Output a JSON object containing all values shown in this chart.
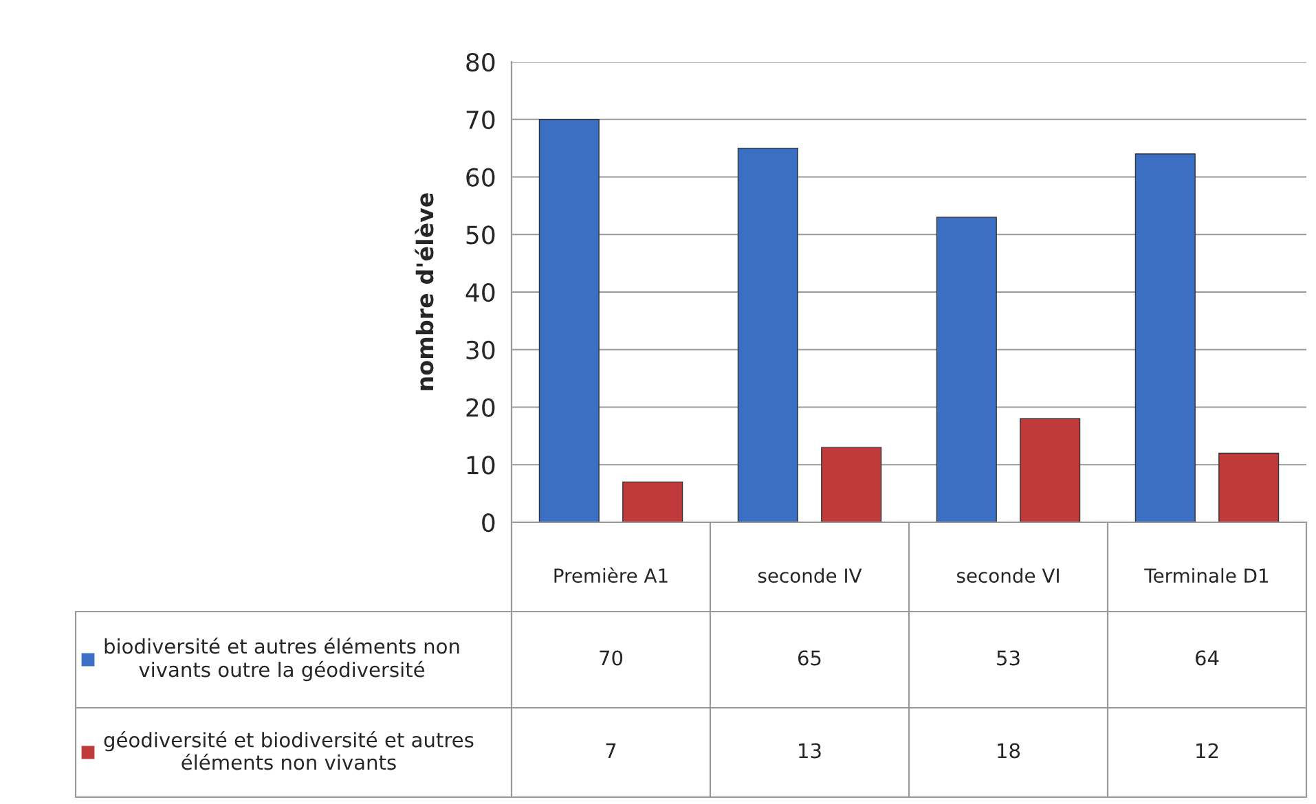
{
  "chart_data": {
    "type": "bar",
    "ylabel": "nombre d'élève",
    "categories": [
      "Première A1",
      "seconde IV",
      "seconde VI",
      "Terminale D1"
    ],
    "series": [
      {
        "name": "biodiversité et autres éléments non vivants outre la géodiversité",
        "color": "#3a6fc4",
        "values": [
          70,
          65,
          53,
          64
        ]
      },
      {
        "name": "géodiversité et biodiversité et autres éléments non vivants",
        "color": "#c0393b",
        "values": [
          7,
          13,
          18,
          12
        ]
      }
    ],
    "ylim": [
      0,
      80
    ],
    "yticks": [
      0,
      10,
      20,
      30,
      40,
      50,
      60,
      70,
      80
    ],
    "grid": "y",
    "legend": "bottom",
    "data_labels": true
  }
}
